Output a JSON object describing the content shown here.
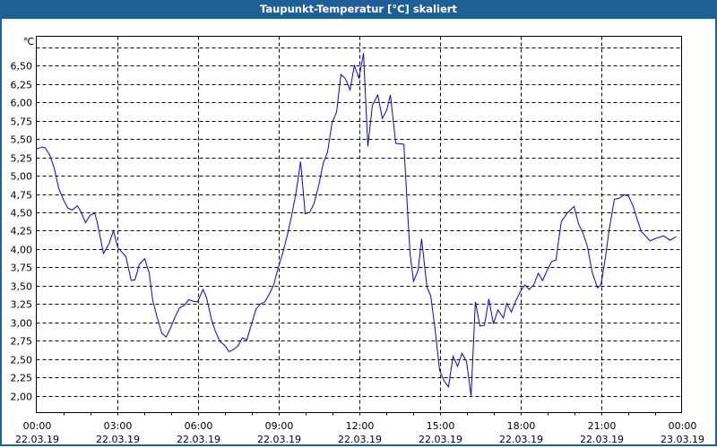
{
  "window": {
    "title": "Taupunkt-Temperatur [°C] skaliert"
  },
  "chart_data": {
    "type": "line",
    "title": "Taupunkt-Temperatur [°C] skaliert",
    "ylabel": "℃",
    "xlabel": "",
    "ylim": [
      1.77,
      6.9
    ],
    "xlim_hours": [
      0,
      24
    ],
    "grid": true,
    "line_color": "#0000ff",
    "y_ticks": [
      {
        "value": 2.0,
        "label": "2,00"
      },
      {
        "value": 2.25,
        "label": "2,25"
      },
      {
        "value": 2.5,
        "label": "2,50"
      },
      {
        "value": 2.75,
        "label": "2,75"
      },
      {
        "value": 3.0,
        "label": "3,00"
      },
      {
        "value": 3.25,
        "label": "3,25"
      },
      {
        "value": 3.5,
        "label": "3,50"
      },
      {
        "value": 3.75,
        "label": "3,75"
      },
      {
        "value": 4.0,
        "label": "4,00"
      },
      {
        "value": 4.25,
        "label": "4,25"
      },
      {
        "value": 4.5,
        "label": "4,50"
      },
      {
        "value": 4.75,
        "label": "4,75"
      },
      {
        "value": 5.0,
        "label": "5,00"
      },
      {
        "value": 5.25,
        "label": "5,25"
      },
      {
        "value": 5.5,
        "label": "5,50"
      },
      {
        "value": 5.75,
        "label": "5,75"
      },
      {
        "value": 6.0,
        "label": "6,00"
      },
      {
        "value": 6.25,
        "label": "6,25"
      },
      {
        "value": 6.5,
        "label": "6,50"
      },
      {
        "value": 6.75,
        "label": ""
      }
    ],
    "x_ticks": [
      {
        "hour": 0,
        "time": "00:00",
        "date": "22.03.19"
      },
      {
        "hour": 3,
        "time": "03:00",
        "date": "22.03.19"
      },
      {
        "hour": 6,
        "time": "06:00",
        "date": "22.03.19"
      },
      {
        "hour": 9,
        "time": "09:00",
        "date": "22.03.19"
      },
      {
        "hour": 12,
        "time": "12:00",
        "date": "22.03.19"
      },
      {
        "hour": 15,
        "time": "15:00",
        "date": "22.03.19"
      },
      {
        "hour": 18,
        "time": "18:00",
        "date": "22.03.19"
      },
      {
        "hour": 21,
        "time": "21:00",
        "date": "22.03.19"
      },
      {
        "hour": 24,
        "time": "00:00",
        "date": "23.03.19"
      }
    ],
    "series": [
      {
        "name": "Taupunkt-Temperatur",
        "x_hours": [
          0,
          0.2,
          0.33,
          0.5,
          0.67,
          0.83,
          1.0,
          1.17,
          1.33,
          1.53,
          1.67,
          1.83,
          2.0,
          2.17,
          2.27,
          2.5,
          2.7,
          2.87,
          3.03,
          3.33,
          3.53,
          3.67,
          3.83,
          4.03,
          4.2,
          4.33,
          4.5,
          4.67,
          4.83,
          5.0,
          5.17,
          5.33,
          5.5,
          5.67,
          5.83,
          6.0,
          6.2,
          6.33,
          6.53,
          6.67,
          6.83,
          7.0,
          7.17,
          7.33,
          7.5,
          7.67,
          7.83,
          8.0,
          8.17,
          8.33,
          8.5,
          8.67,
          8.83,
          9.0,
          9.17,
          9.33,
          9.5,
          9.67,
          9.83,
          10.0,
          10.17,
          10.33,
          10.5,
          10.67,
          10.83,
          11.0,
          11.17,
          11.33,
          11.5,
          11.67,
          11.83,
          12.0,
          12.17,
          12.33,
          12.5,
          12.7,
          12.87,
          13.03,
          13.17,
          13.37,
          13.67,
          13.83,
          13.9,
          14.03,
          14.2,
          14.33,
          14.53,
          14.67,
          14.83,
          15.0,
          15.17,
          15.33,
          15.5,
          15.67,
          15.83,
          16.0,
          16.17,
          16.33,
          16.5,
          16.67,
          16.83,
          17.0,
          17.17,
          17.37,
          17.5,
          17.67,
          17.83,
          18.0,
          18.17,
          18.33,
          18.5,
          18.67,
          18.83,
          19.0,
          19.17,
          19.33,
          19.43,
          19.53,
          19.77,
          20.0,
          20.17,
          20.33,
          20.5,
          20.67,
          20.87,
          21.0,
          21.17,
          21.3,
          21.5,
          21.67,
          21.87,
          22.03,
          22.2,
          22.37,
          22.5,
          22.83,
          23.0,
          23.33,
          23.57,
          23.8
        ],
        "values": [
          5.36,
          5.39,
          5.38,
          5.28,
          5.1,
          4.83,
          4.68,
          4.56,
          4.53,
          4.59,
          4.5,
          4.36,
          4.46,
          4.49,
          4.36,
          3.94,
          4.07,
          4.25,
          4.02,
          3.9,
          3.57,
          3.58,
          3.79,
          3.87,
          3.67,
          3.3,
          3.06,
          2.85,
          2.8,
          2.93,
          3.08,
          3.2,
          3.23,
          3.31,
          3.29,
          3.28,
          3.45,
          3.34,
          3.02,
          2.87,
          2.74,
          2.69,
          2.6,
          2.63,
          2.68,
          2.79,
          2.76,
          2.97,
          3.18,
          3.25,
          3.28,
          3.39,
          3.51,
          3.75,
          3.95,
          4.18,
          4.46,
          4.79,
          5.19,
          4.48,
          4.5,
          4.62,
          4.86,
          5.17,
          5.32,
          5.72,
          5.87,
          6.38,
          6.32,
          6.17,
          6.5,
          6.33,
          6.67,
          5.4,
          5.96,
          6.1,
          5.78,
          5.89,
          6.1,
          5.44,
          5.43,
          4.38,
          3.94,
          3.56,
          3.71,
          4.14,
          3.48,
          3.36,
          2.91,
          2.35,
          2.2,
          2.12,
          2.54,
          2.4,
          2.58,
          2.47,
          2.0,
          3.28,
          2.95,
          2.96,
          3.32,
          2.98,
          3.17,
          3.06,
          3.26,
          3.14,
          3.29,
          3.42,
          3.51,
          3.45,
          3.51,
          3.67,
          3.57,
          3.71,
          3.83,
          3.85,
          4.13,
          4.38,
          4.5,
          4.58,
          4.34,
          4.22,
          4.03,
          3.69,
          3.47,
          3.51,
          3.89,
          4.25,
          4.68,
          4.69,
          4.74,
          4.72,
          4.58,
          4.38,
          4.24,
          4.11,
          4.14,
          4.18,
          4.12,
          4.17
        ]
      }
    ]
  }
}
